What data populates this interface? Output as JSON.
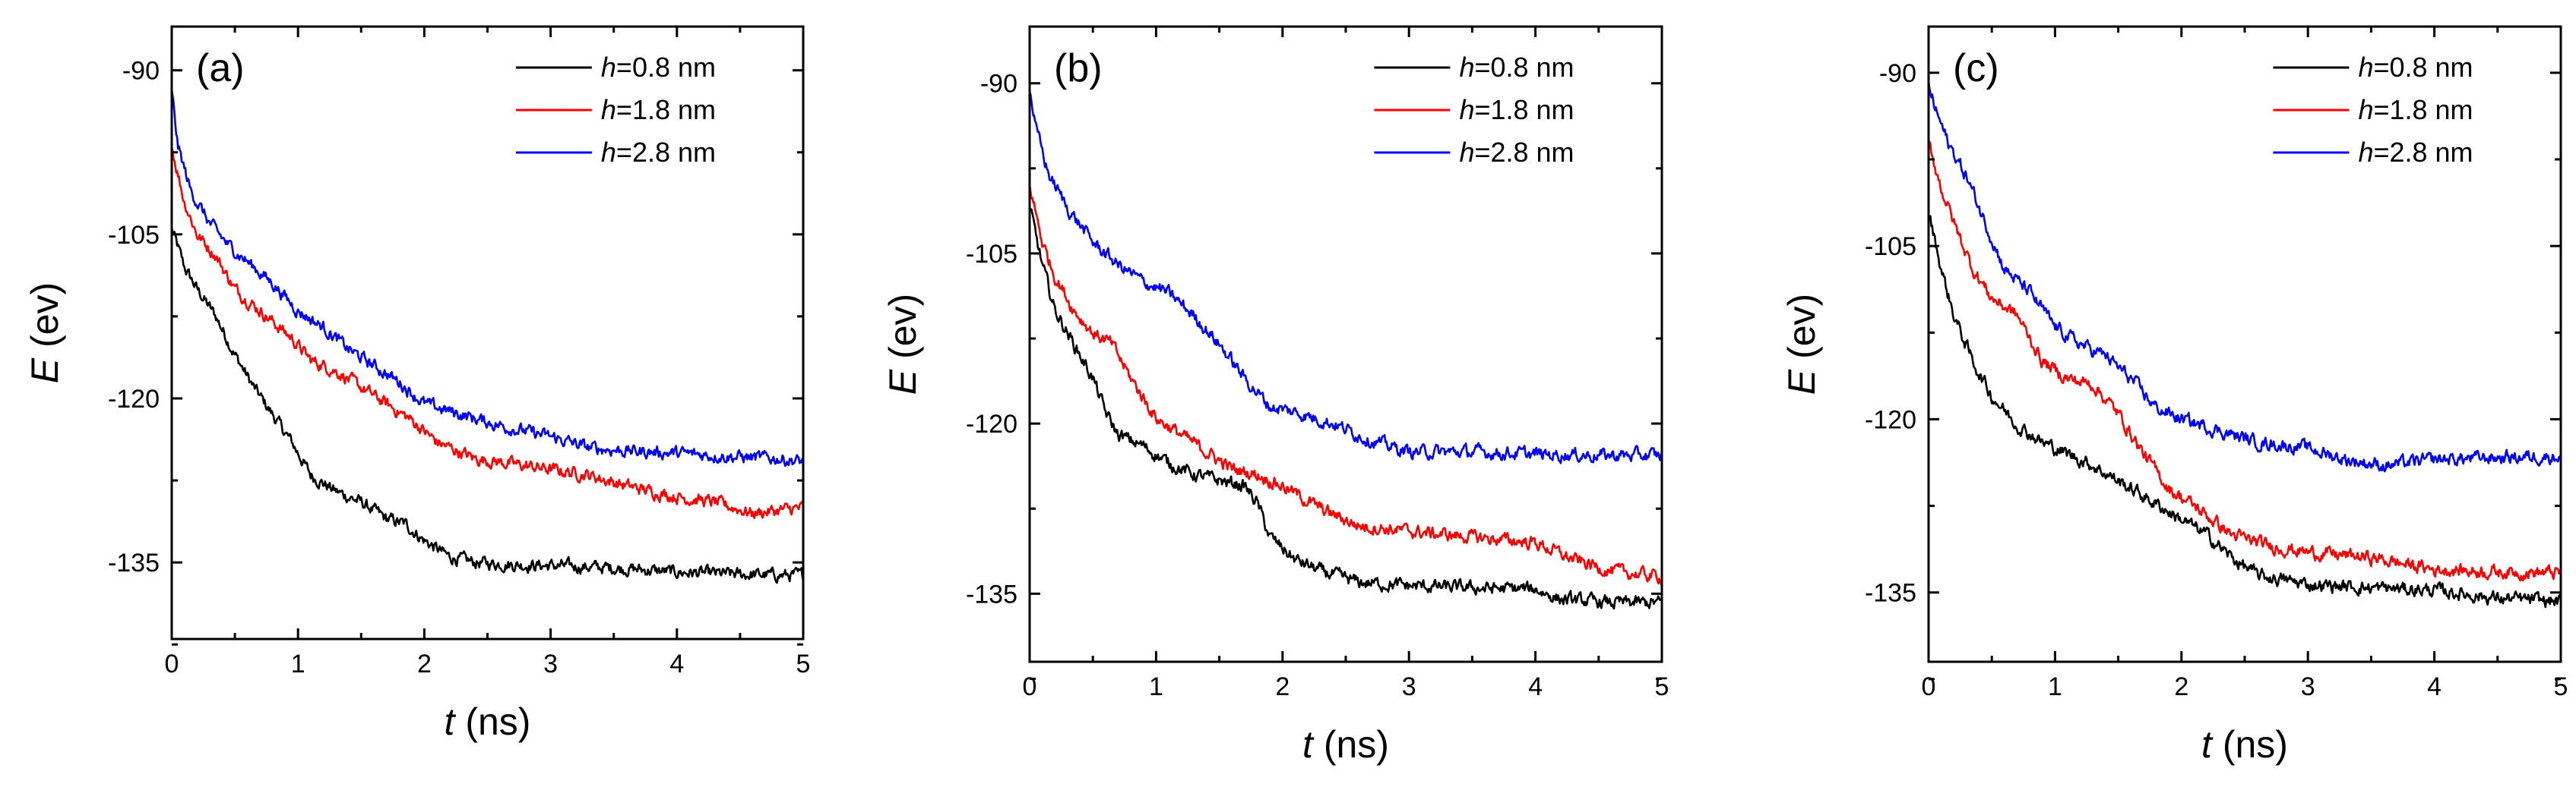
{
  "figure": {
    "panels_description": "Three panels (a), (b), (c) of energy E versus time t for three h values"
  },
  "colors": {
    "h0.8": "#000000",
    "h1.8": "#ff0000",
    "h2.8": "#0000ff",
    "axis": "#000000"
  },
  "chart_data": [
    {
      "type": "line",
      "panel_label": "(a)",
      "xlabel_var": "t",
      "xlabel_unit": " (ns)",
      "ylabel_var": "E",
      "ylabel_unit": " (ev)",
      "xlim": [
        0,
        5
      ],
      "ylim": [
        -142,
        -86
      ],
      "xticks": [
        "0",
        "1",
        "2",
        "3",
        "4",
        "5"
      ],
      "xtick_values": [
        0,
        1,
        2,
        3,
        4,
        5
      ],
      "yticks": [
        "-90",
        "-105",
        "-120",
        "-135"
      ],
      "ytick_values": [
        -90,
        -105,
        -120,
        -135
      ],
      "legend": [
        {
          "var": "h",
          "text": "=0.8 nm",
          "color": "#000000"
        },
        {
          "var": "h",
          "text": "=1.8 nm",
          "color": "#ff0000"
        },
        {
          "var": "h",
          "text": "=2.8 nm",
          "color": "#0000ff"
        }
      ],
      "series": [
        {
          "name": "h=0.8 nm",
          "color": "#000000",
          "x": [
            0,
            0.1,
            0.2,
            0.35,
            0.5,
            0.65,
            0.8,
            0.95,
            1.1,
            1.3,
            1.5,
            1.7,
            1.85,
            2.0,
            2.2,
            2.4,
            2.7,
            3.0,
            3.5,
            4.0,
            4.5,
            5.0
          ],
          "y": [
            -104.5,
            -108,
            -110,
            -112.5,
            -116,
            -119,
            -121.5,
            -124,
            -127,
            -128.5,
            -129.5,
            -131,
            -131.5,
            -133,
            -134.5,
            -135,
            -135.2,
            -135.3,
            -135.5,
            -135.9,
            -136.1,
            -136.2
          ]
        },
        {
          "name": "h=1.8 nm",
          "color": "#ff0000",
          "x": [
            0,
            0.1,
            0.2,
            0.35,
            0.5,
            0.65,
            0.8,
            0.95,
            1.1,
            1.3,
            1.5,
            1.7,
            1.9,
            2.1,
            2.4,
            2.7,
            3.0,
            3.3,
            3.6,
            4.0,
            4.3,
            4.6,
            5.0
          ],
          "y": [
            -97,
            -102,
            -105,
            -107,
            -110,
            -111.5,
            -113,
            -114.5,
            -116.5,
            -117.5,
            -119,
            -120.5,
            -122,
            -124,
            -125.5,
            -126,
            -126.5,
            -127,
            -128,
            -129,
            -129.5,
            -130.5,
            -130
          ]
        },
        {
          "name": "h=2.8 nm",
          "color": "#0000ff",
          "x": [
            0,
            0.05,
            0.15,
            0.3,
            0.45,
            0.6,
            0.8,
            1.0,
            1.2,
            1.4,
            1.6,
            1.8,
            2.0,
            2.3,
            2.6,
            3.0,
            3.3,
            3.6,
            4.0,
            4.4,
            4.8,
            5.0
          ],
          "y": [
            -92,
            -97,
            -101,
            -104,
            -106,
            -107.5,
            -109.5,
            -112,
            -113.5,
            -115.5,
            -117,
            -118.5,
            -120.5,
            -121.5,
            -122.5,
            -123.5,
            -124.5,
            -124.8,
            -125,
            -125.3,
            -125.5,
            -125.8
          ]
        }
      ]
    },
    {
      "type": "line",
      "panel_label": "(b)",
      "xlabel_var": "t",
      "xlabel_unit": " (ns)",
      "ylabel_var": "E",
      "ylabel_unit": " (ev)",
      "xlim": [
        0,
        5
      ],
      "ylim": [
        -141,
        -85
      ],
      "xticks": [
        "0",
        "1",
        "2",
        "3",
        "4",
        "5"
      ],
      "xtick_values": [
        0,
        1,
        2,
        3,
        4,
        5
      ],
      "yticks": [
        "-90",
        "-105",
        "-120",
        "-135"
      ],
      "ytick_values": [
        -90,
        -105,
        -120,
        -135
      ],
      "legend": [
        {
          "var": "h",
          "text": "=0.8 nm",
          "color": "#000000"
        },
        {
          "var": "h",
          "text": "=1.8 nm",
          "color": "#ff0000"
        },
        {
          "var": "h",
          "text": "=2.8 nm",
          "color": "#0000ff"
        }
      ],
      "series": [
        {
          "name": "h=0.8 nm",
          "color": "#000000",
          "x": [
            0,
            0.1,
            0.2,
            0.35,
            0.5,
            0.6,
            0.7,
            0.9,
            1.1,
            1.3,
            1.5,
            1.7,
            1.8,
            1.9,
            2.1,
            2.3,
            2.6,
            3.0,
            3.5,
            4.0,
            4.2,
            4.6,
            5.0
          ],
          "y": [
            -101,
            -106,
            -110,
            -113,
            -116,
            -119,
            -121,
            -122,
            -123.5,
            -124.5,
            -125,
            -125.5,
            -127,
            -130,
            -132,
            -133,
            -134,
            -134.3,
            -134.5,
            -134.6,
            -135.5,
            -135.8,
            -135.8
          ]
        },
        {
          "name": "h=1.8 nm",
          "color": "#ff0000",
          "x": [
            0,
            0.1,
            0.2,
            0.35,
            0.5,
            0.65,
            0.8,
            1.0,
            1.2,
            1.4,
            1.6,
            1.8,
            2.0,
            2.3,
            2.6,
            3.0,
            3.5,
            4.0,
            4.3,
            4.6,
            5.0
          ],
          "y": [
            -99,
            -104,
            -107,
            -110,
            -112,
            -113,
            -116,
            -119.5,
            -121,
            -122.5,
            -124,
            -124.5,
            -125.5,
            -127.5,
            -129,
            -129.5,
            -130,
            -130.5,
            -132,
            -133,
            -133.5
          ]
        },
        {
          "name": "h=2.8 nm",
          "color": "#0000ff",
          "x": [
            0,
            0.05,
            0.15,
            0.3,
            0.5,
            0.7,
            0.9,
            1.1,
            1.3,
            1.5,
            1.7,
            1.9,
            2.1,
            2.4,
            2.7,
            3.0,
            3.5,
            4.0,
            4.5,
            5.0
          ],
          "y": [
            -90.5,
            -94,
            -98,
            -101,
            -104,
            -106,
            -107.5,
            -108.5,
            -110.5,
            -113,
            -116,
            -118.5,
            -119,
            -120,
            -121.5,
            -122.5,
            -122.5,
            -122.7,
            -122.8,
            -122.8
          ]
        }
      ]
    },
    {
      "type": "line",
      "panel_label": "(c)",
      "xlabel_var": "t",
      "xlabel_unit": " (ns)",
      "ylabel_var": "E",
      "ylabel_unit": " (ev)",
      "xlim": [
        0,
        5
      ],
      "ylim": [
        -141,
        -86
      ],
      "xticks": [
        "0",
        "1",
        "2",
        "3",
        "4",
        "5"
      ],
      "xtick_values": [
        0,
        1,
        2,
        3,
        4,
        5
      ],
      "yticks": [
        "-90",
        "-105",
        "-120",
        "-135"
      ],
      "ytick_values": [
        -90,
        -105,
        -120,
        -135
      ],
      "legend": [
        {
          "var": "h",
          "text": "=0.8 nm",
          "color": "#000000"
        },
        {
          "var": "h",
          "text": "=1.8 nm",
          "color": "#ff0000"
        },
        {
          "var": "h",
          "text": "=2.8 nm",
          "color": "#0000ff"
        }
      ],
      "series": [
        {
          "name": "h=0.8 nm",
          "color": "#000000",
          "x": [
            0,
            0.1,
            0.2,
            0.35,
            0.5,
            0.7,
            0.9,
            1.1,
            1.3,
            1.6,
            1.9,
            2.2,
            2.4,
            2.6,
            3.0,
            3.5,
            4.0,
            4.5,
            5.0
          ],
          "y": [
            -102,
            -107,
            -111,
            -115,
            -118,
            -120.5,
            -122,
            -123,
            -124,
            -126,
            -128,
            -130,
            -132,
            -133.5,
            -134.3,
            -134.6,
            -134.8,
            -135.5,
            -135.8
          ]
        },
        {
          "name": "h=1.8 nm",
          "color": "#ff0000",
          "x": [
            0,
            0.1,
            0.2,
            0.35,
            0.5,
            0.7,
            0.9,
            1.1,
            1.3,
            1.5,
            1.7,
            1.9,
            2.1,
            2.4,
            2.7,
            3.0,
            3.5,
            4.0,
            4.5,
            5.0
          ],
          "y": [
            -96,
            -100,
            -103,
            -107,
            -109.5,
            -111,
            -115,
            -116.5,
            -117,
            -119.5,
            -123,
            -126,
            -127.5,
            -130,
            -131,
            -131.5,
            -132,
            -133,
            -133.2,
            -133.3
          ]
        },
        {
          "name": "h=2.8 nm",
          "color": "#0000ff",
          "x": [
            0,
            0.05,
            0.15,
            0.3,
            0.45,
            0.6,
            0.8,
            1.0,
            1.2,
            1.4,
            1.6,
            1.8,
            2.0,
            2.3,
            2.6,
            3.0,
            3.3,
            3.6,
            4.0,
            4.5,
            5.0
          ],
          "y": [
            -91,
            -93,
            -96,
            -99,
            -103,
            -107,
            -109,
            -112,
            -113.5,
            -114.5,
            -116.5,
            -119,
            -120,
            -121,
            -122,
            -122.5,
            -123.5,
            -124,
            -123.5,
            -123.3,
            -123.2
          ]
        }
      ]
    }
  ]
}
